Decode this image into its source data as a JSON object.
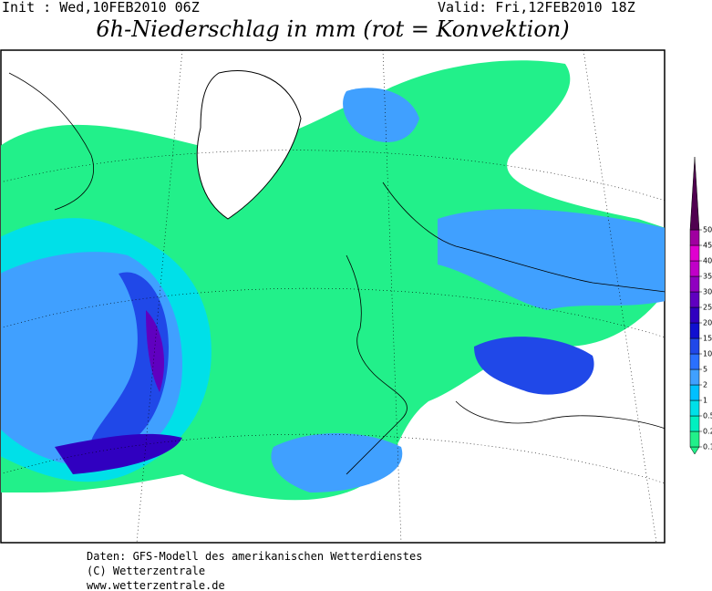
{
  "header": {
    "init": "Init : Wed,10FEB2010 06Z",
    "valid": "Valid: Fri,12FEB2010 18Z",
    "title": "6h-Niederschlag in mm (rot = Konvektion)"
  },
  "colorbar": {
    "levels": [
      0.1,
      0.2,
      0.5,
      1,
      2,
      5,
      10,
      15,
      20,
      25,
      30,
      35,
      40,
      45,
      50
    ],
    "colors": [
      "#22f08a",
      "#00f0c0",
      "#00e0e8",
      "#00c0ff",
      "#40a0ff",
      "#2a70ff",
      "#2048e8",
      "#1010d0",
      "#3000c0",
      "#6000c0",
      "#9000c0",
      "#c000c8",
      "#e000d0",
      "#a000a0",
      "#500050"
    ]
  },
  "footer": {
    "line1": "Daten: GFS-Modell des amerikanischen Wetterdienstes",
    "line2": "(C) Wetterzentrale",
    "line3": "www.wetterzentrale.de"
  }
}
